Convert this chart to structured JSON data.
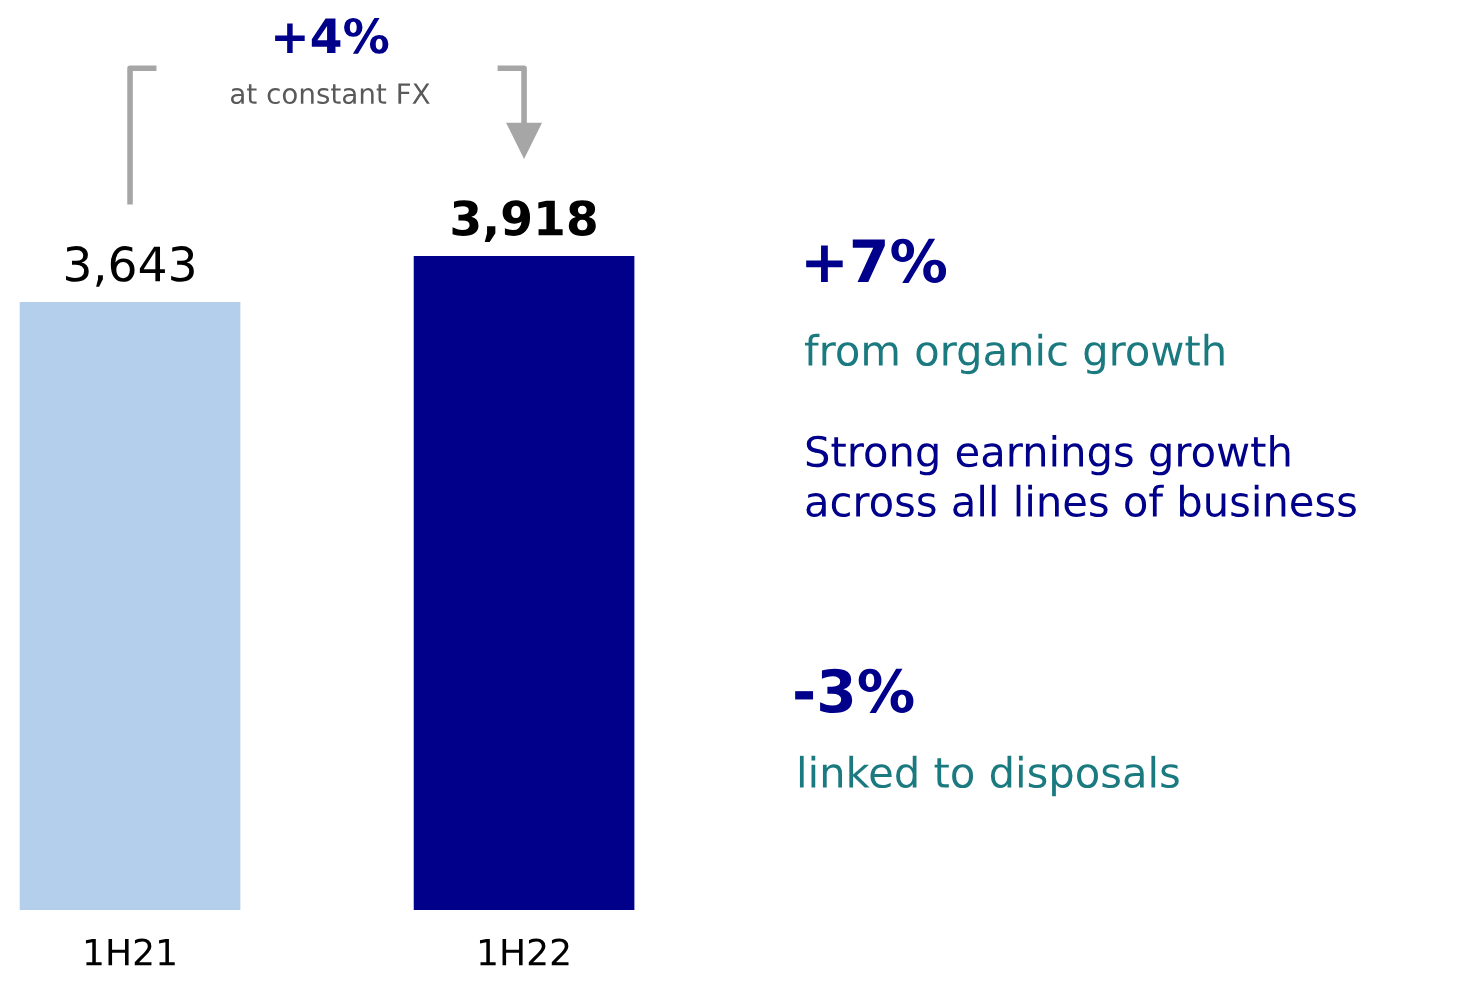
{
  "chart_data": {
    "type": "bar",
    "categories": [
      "1H21",
      "1H22"
    ],
    "values": [
      3643,
      3918
    ],
    "colors": [
      "#b4cfec",
      "#00008b"
    ],
    "value_labels": [
      "3,643",
      "3,918"
    ],
    "annotations": [
      "+4%",
      "at constant FX",
      "+7%",
      "from organic growth",
      "Strong earnings growth\nacross all lines of business",
      "-3%",
      "linked to disposals"
    ],
    "grid": false,
    "legend": false
  }
}
